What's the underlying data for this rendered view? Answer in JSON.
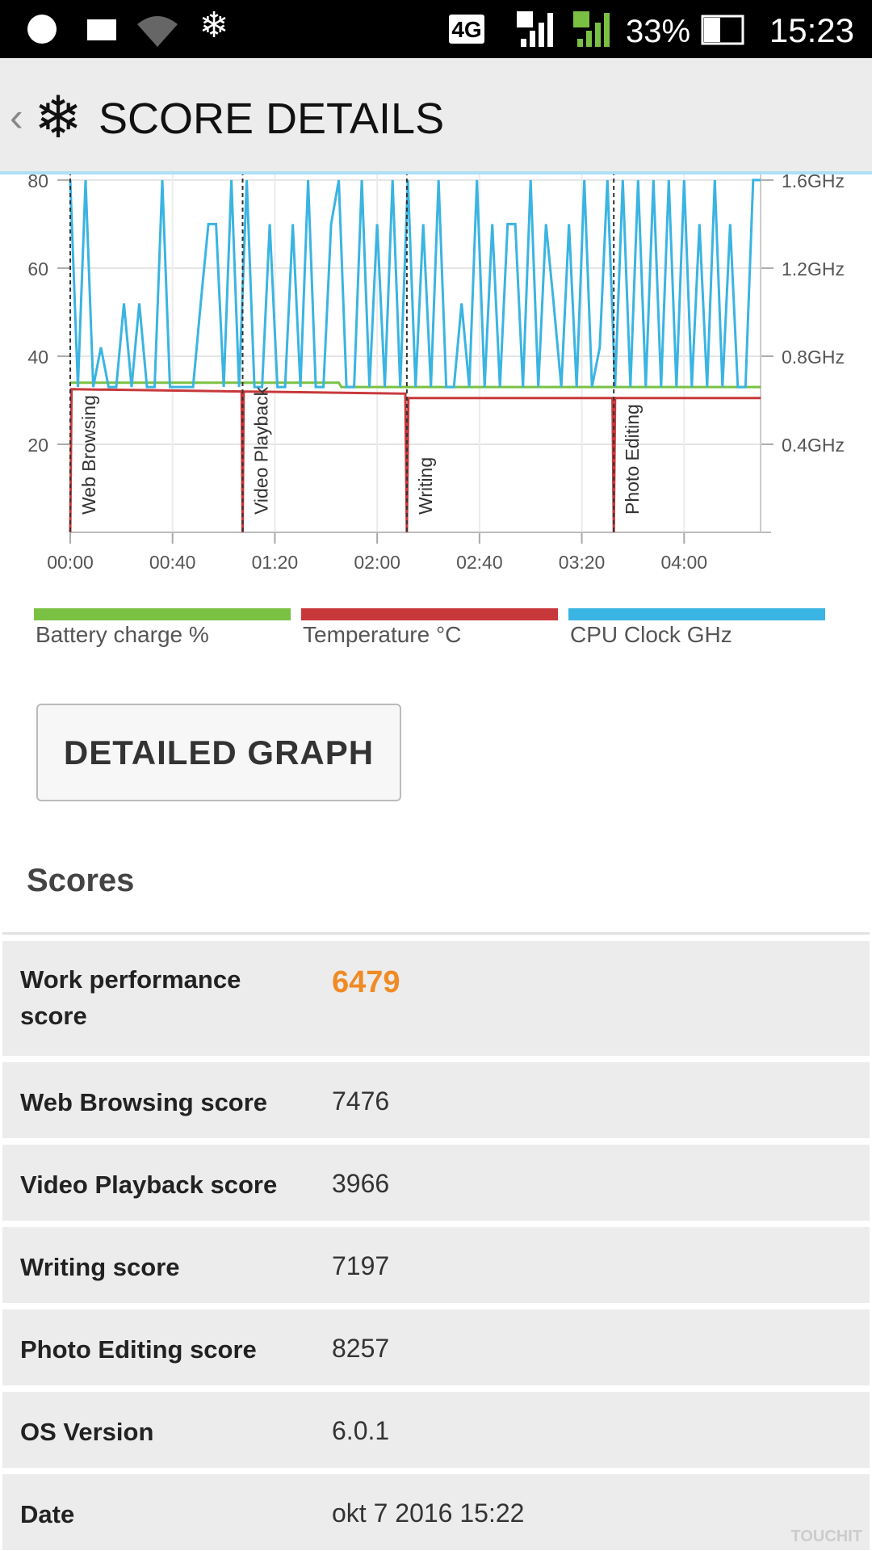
{
  "status_bar": {
    "network": "4G",
    "battery": "33%",
    "time": "15:23"
  },
  "header": {
    "title": "SCORE DETAILS"
  },
  "chart_data": {
    "type": "line",
    "xlim": [
      0,
      274
    ],
    "xticks": [
      {
        "value": 0,
        "label": "00:00"
      },
      {
        "value": 40,
        "label": "00:40"
      },
      {
        "value": 80,
        "label": "01:20"
      },
      {
        "value": 120,
        "label": "02:00"
      },
      {
        "value": 160,
        "label": "02:40"
      },
      {
        "value": 200,
        "label": "03:20"
      },
      {
        "value": 240,
        "label": "04:00"
      }
    ],
    "ylim": [
      0,
      82
    ],
    "yticks": [
      20,
      40,
      60,
      80
    ],
    "y2lim": [
      0,
      1.64
    ],
    "y2ticks": [
      {
        "value": 0.4,
        "label": "0.4GHz"
      },
      {
        "value": 0.8,
        "label": "0.8GHz"
      },
      {
        "value": 1.2,
        "label": "1.2GHz"
      },
      {
        "value": 1.6,
        "label": "1.6GHz"
      }
    ],
    "grid": true,
    "annotations": [
      {
        "x": 0,
        "label": "Web Browsing"
      },
      {
        "x": 67.4,
        "label": "Video Playback"
      },
      {
        "x": 131.6,
        "label": "Writing"
      },
      {
        "x": 212.5,
        "label": "Photo Editing"
      }
    ],
    "series": [
      {
        "name": "Battery charge %",
        "color": "#7ac143",
        "x": [
          0,
          105,
          106,
          270
        ],
        "values": [
          34,
          34,
          33,
          33
        ]
      },
      {
        "name": "Temperature °C",
        "color": "#c8383b",
        "x": [
          0,
          0.5,
          67,
          67.4,
          67.8,
          131,
          131.6,
          132.2,
          212,
          212.5,
          213,
          270
        ],
        "values": [
          0,
          32.5,
          32,
          0,
          32,
          31.5,
          0,
          30.5,
          30.5,
          0,
          30.5,
          30.5
        ]
      },
      {
        "name": "CPU Clock GHz",
        "color": "#3ab4e2",
        "axis": "y2",
        "x": [
          0,
          3,
          6,
          9,
          12,
          15,
          18,
          21,
          24,
          27,
          30,
          33,
          36,
          39,
          42,
          45,
          48,
          51,
          54,
          57,
          60,
          63,
          66,
          69,
          72,
          75,
          78,
          81,
          84,
          87,
          90,
          93,
          96,
          99,
          102,
          105,
          108,
          111,
          114,
          117,
          120,
          123,
          126,
          129,
          132,
          135,
          138,
          141,
          144,
          147,
          150,
          153,
          156,
          159,
          162,
          165,
          168,
          171,
          174,
          177,
          180,
          183,
          186,
          189,
          192,
          195,
          198,
          201,
          204,
          207,
          210,
          213,
          216,
          219,
          222,
          225,
          228,
          231,
          234,
          237,
          240,
          243,
          246,
          249,
          252,
          255,
          258,
          261,
          264,
          267,
          270
        ],
        "values": [
          1.6,
          0.66,
          1.6,
          0.66,
          0.84,
          0.66,
          0.66,
          1.04,
          0.66,
          1.04,
          0.66,
          0.66,
          1.6,
          0.66,
          0.66,
          0.66,
          0.66,
          1.04,
          1.4,
          1.4,
          0.66,
          1.6,
          0.66,
          1.6,
          0.66,
          0.66,
          1.4,
          0.66,
          0.66,
          1.4,
          0.66,
          1.6,
          0.66,
          0.66,
          1.4,
          1.6,
          0.66,
          0.66,
          1.6,
          0.66,
          1.4,
          0.66,
          1.6,
          0.66,
          1.6,
          0.66,
          1.4,
          0.66,
          1.6,
          0.66,
          0.66,
          1.04,
          0.66,
          1.6,
          0.66,
          1.4,
          0.66,
          1.4,
          1.4,
          0.66,
          1.6,
          0.66,
          1.4,
          1.04,
          0.66,
          1.4,
          0.66,
          1.6,
          0.66,
          0.84,
          1.6,
          0.66,
          1.6,
          0.66,
          1.6,
          0.66,
          1.6,
          0.66,
          1.6,
          0.66,
          1.6,
          0.66,
          1.4,
          0.66,
          1.6,
          0.66,
          1.4,
          0.66,
          0.66,
          1.6,
          1.6
        ]
      }
    ]
  },
  "button": {
    "label": "DETAILED GRAPH"
  },
  "scores": {
    "title": "Scores",
    "rows": [
      [
        "Work performance score",
        "6479"
      ],
      [
        "Web Browsing score",
        "7476"
      ],
      [
        "Video Playback score",
        "3966"
      ],
      [
        "Writing score",
        "7197"
      ],
      [
        "Photo Editing score",
        "8257"
      ],
      [
        "OS Version",
        "6.0.1"
      ],
      [
        "Date",
        "okt 7 2016 15:22"
      ]
    ]
  },
  "watermark": "TOUCHIT"
}
